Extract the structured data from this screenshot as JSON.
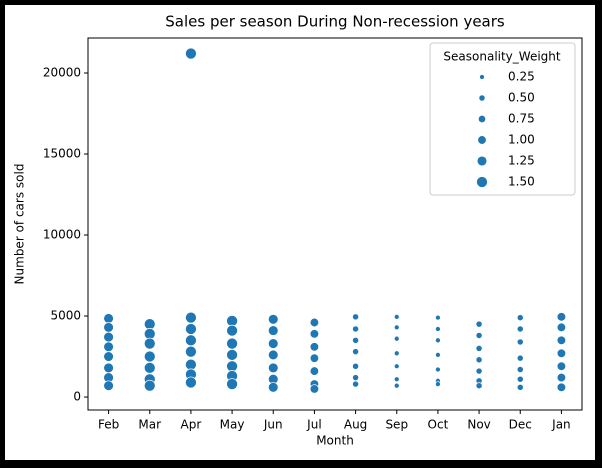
{
  "chart_data": {
    "type": "scatter",
    "title": "Sales per season During Non-recession years",
    "x_label": "Month",
    "y_label": "Number of cars sold",
    "color": "#1f77b4",
    "categories": [
      "Feb",
      "Mar",
      "Apr",
      "May",
      "Jun",
      "Jul",
      "Aug",
      "Sep",
      "Oct",
      "Nov",
      "Dec",
      "Jan"
    ],
    "x": [
      "Feb",
      "Feb",
      "Feb",
      "Feb",
      "Feb",
      "Feb",
      "Feb",
      "Feb",
      "Mar",
      "Mar",
      "Mar",
      "Mar",
      "Mar",
      "Mar",
      "Mar",
      "Apr",
      "Apr",
      "Apr",
      "Apr",
      "Apr",
      "Apr",
      "Apr",
      "Apr",
      "May",
      "May",
      "May",
      "May",
      "May",
      "May",
      "May",
      "Jun",
      "Jun",
      "Jun",
      "Jun",
      "Jun",
      "Jun",
      "Jun",
      "Jul",
      "Jul",
      "Jul",
      "Jul",
      "Jul",
      "Jul",
      "Jul",
      "Aug",
      "Aug",
      "Aug",
      "Aug",
      "Aug",
      "Aug",
      "Aug",
      "Sep",
      "Sep",
      "Sep",
      "Sep",
      "Sep",
      "Sep",
      "Sep",
      "Oct",
      "Oct",
      "Oct",
      "Oct",
      "Oct",
      "Oct",
      "Oct",
      "Nov",
      "Nov",
      "Nov",
      "Nov",
      "Nov",
      "Nov",
      "Nov",
      "Dec",
      "Dec",
      "Dec",
      "Dec",
      "Dec",
      "Dec",
      "Dec",
      "Jan",
      "Jan",
      "Jan",
      "Jan",
      "Jan",
      "Jan",
      "Jan"
    ],
    "y": [
      4850,
      4300,
      3700,
      3100,
      2500,
      1800,
      1200,
      700,
      4500,
      3900,
      3300,
      2500,
      1800,
      1100,
      700,
      21200,
      4900,
      4200,
      3500,
      2800,
      2000,
      1400,
      900,
      4700,
      4100,
      3300,
      2600,
      1900,
      1300,
      800,
      4800,
      4100,
      3300,
      2600,
      1800,
      1100,
      600,
      4600,
      3900,
      3100,
      2400,
      1600,
      800,
      500,
      4950,
      4200,
      3500,
      2800,
      1900,
      1200,
      800,
      4950,
      4300,
      3600,
      2700,
      1900,
      1100,
      700,
      4900,
      4200,
      3500,
      2600,
      1700,
      1000,
      800,
      4500,
      3800,
      3000,
      2300,
      1600,
      1000,
      700,
      4900,
      4200,
      3400,
      2400,
      1700,
      1100,
      600,
      4950,
      4300,
      3500,
      2700,
      1900,
      1200,
      600
    ],
    "sizes": [
      1.25,
      1.25,
      1.25,
      1.25,
      1.25,
      1.25,
      1.25,
      1.25,
      1.5,
      1.5,
      1.5,
      1.5,
      1.5,
      1.5,
      1.5,
      1.5,
      1.5,
      1.5,
      1.5,
      1.5,
      1.5,
      1.5,
      1.5,
      1.5,
      1.5,
      1.5,
      1.5,
      1.5,
      1.5,
      1.5,
      1.25,
      1.25,
      1.25,
      1.25,
      1.25,
      1.25,
      1.25,
      1,
      1,
      1,
      1,
      1,
      1,
      1,
      0.5,
      0.5,
      0.5,
      0.5,
      0.5,
      0.5,
      0.5,
      0.25,
      0.25,
      0.25,
      0.25,
      0.25,
      0.25,
      0.25,
      0.25,
      0.25,
      0.25,
      0.25,
      0.25,
      0.25,
      0.25,
      0.5,
      0.5,
      0.5,
      0.5,
      0.5,
      0.5,
      0.5,
      0.5,
      0.5,
      0.5,
      0.5,
      0.5,
      0.5,
      0.5,
      1,
      1,
      1,
      1,
      1,
      1,
      1
    ],
    "ylim": [
      -800,
      22160
    ],
    "yticks": [
      0,
      5000,
      10000,
      15000,
      20000
    ],
    "legend": {
      "title": "Seasonality_Weight",
      "position": "upper right",
      "values": [
        0.25,
        {
          "value": 0.5,
          "label": "0.50"
        },
        0.75,
        {
          "value": 1,
          "label": "1.00"
        },
        1.25,
        {
          "value": 1.5,
          "label": "1.50"
        }
      ]
    }
  }
}
